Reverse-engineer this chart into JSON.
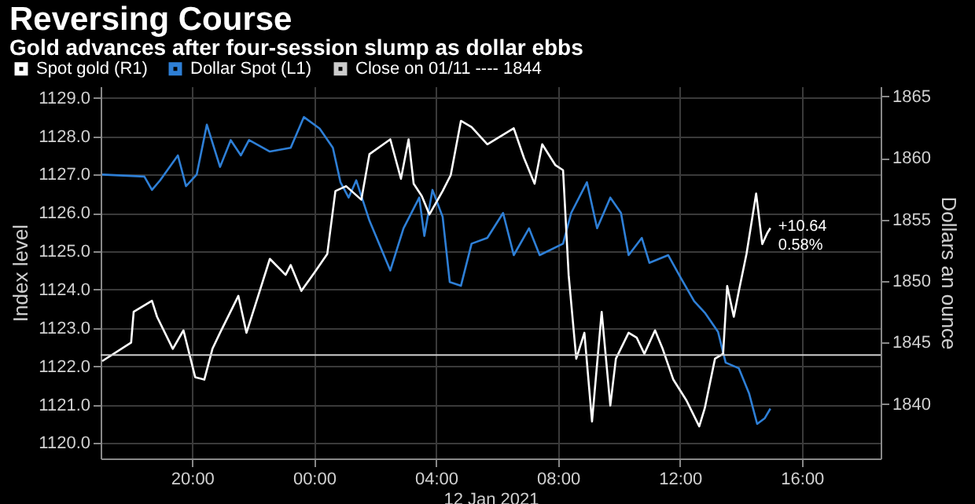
{
  "chart_data": {
    "type": "line",
    "title": "Reversing Course",
    "subtitle": "Gold advances after four-session slump as dollar ebbs",
    "xlabel": "12 Jan 2021",
    "ylabel": "Index level",
    "y2label": "Dollars an ounce",
    "xlim": [
      "2021-01-11T17:00",
      "2021-01-12T18:35"
    ],
    "xticks": [
      {
        "value": "2021-01-11T20:00",
        "label": "20:00"
      },
      {
        "value": "2021-01-12T00:00",
        "label": "00:00"
      },
      {
        "value": "2021-01-12T04:00",
        "label": "04:00"
      },
      {
        "value": "2021-01-12T08:00",
        "label": "08:00"
      },
      {
        "value": "2021-01-12T12:00",
        "label": "12:00"
      },
      {
        "value": "2021-01-12T16:00",
        "label": "16:00"
      }
    ],
    "ylim": [
      1119.6,
      1129.3
    ],
    "yticks": [
      {
        "value": 1120,
        "label": "1120.0"
      },
      {
        "value": 1121,
        "label": "1121.0"
      },
      {
        "value": 1122,
        "label": "1122.0"
      },
      {
        "value": 1123,
        "label": "1123.0"
      },
      {
        "value": 1124,
        "label": "1124.0"
      },
      {
        "value": 1125,
        "label": "1125.0"
      },
      {
        "value": 1126,
        "label": "1126.0"
      },
      {
        "value": 1127,
        "label": "1127.0"
      },
      {
        "value": 1128,
        "label": "1128.0"
      },
      {
        "value": 1129,
        "label": "1129.0"
      }
    ],
    "y2lim": [
      1835.6,
      1865.8
    ],
    "y2ticks": [
      1840,
      1845,
      1850,
      1855,
      1860,
      1865
    ],
    "grid": true,
    "legend": "top left",
    "series": [
      {
        "name": "Spot gold (R1)",
        "color": "#ffffff",
        "axis": "y2",
        "x": [
          "2021-01-11T17:03",
          "2021-01-11T18:00",
          "2021-01-11T18:05",
          "2021-01-11T18:41",
          "2021-01-11T18:51",
          "2021-01-11T19:22",
          "2021-01-11T19:43",
          "2021-01-11T20:06",
          "2021-01-11T20:24",
          "2021-01-11T20:40",
          "2021-01-11T20:55",
          "2021-01-11T21:31",
          "2021-01-11T21:47",
          "2021-01-11T22:07",
          "2021-01-11T22:33",
          "2021-01-11T23:04",
          "2021-01-11T23:14",
          "2021-01-11T23:35",
          "2021-01-12T00:01",
          "2021-01-12T00:26",
          "2021-01-12T00:42",
          "2021-01-12T01:03",
          "2021-01-12T01:33",
          "2021-01-12T01:49",
          "2021-01-12T02:30",
          "2021-01-12T02:51",
          "2021-01-12T03:06",
          "2021-01-12T03:16",
          "2021-01-12T03:32",
          "2021-01-12T03:47",
          "2021-01-12T04:13",
          "2021-01-12T04:29",
          "2021-01-12T04:49",
          "2021-01-12T05:10",
          "2021-01-12T05:41",
          "2021-01-12T06:33",
          "2021-01-12T06:53",
          "2021-01-12T07:14",
          "2021-01-12T07:29",
          "2021-01-12T07:55",
          "2021-01-12T08:10",
          "2021-01-12T08:21",
          "2021-01-12T08:36",
          "2021-01-12T08:52",
          "2021-01-12T09:07",
          "2021-01-12T09:26",
          "2021-01-12T09:43",
          "2021-01-12T09:54",
          "2021-01-12T10:19",
          "2021-01-12T10:35",
          "2021-01-12T10:50",
          "2021-01-12T11:11",
          "2021-01-12T11:26",
          "2021-01-12T11:47",
          "2021-01-12T12:13",
          "2021-01-12T12:38",
          "2021-01-12T12:49",
          "2021-01-12T13:09",
          "2021-01-12T13:25",
          "2021-01-12T13:33",
          "2021-01-12T13:46",
          "2021-01-12T13:56",
          "2021-01-12T14:11",
          "2021-01-12T14:30",
          "2021-01-12T14:42",
          "2021-01-12T14:52",
          "2021-01-12T14:58"
        ],
        "values": [
          1843.5,
          1845.0,
          1847.5,
          1848.4,
          1847.1,
          1844.5,
          1846.0,
          1842.2,
          1842.0,
          1844.5,
          1845.8,
          1848.8,
          1845.8,
          1848.4,
          1851.8,
          1850.5,
          1851.3,
          1849.2,
          1850.7,
          1852.2,
          1857.3,
          1857.7,
          1856.6,
          1860.3,
          1861.5,
          1858.3,
          1861.5,
          1857.9,
          1856.9,
          1855.4,
          1857.3,
          1858.6,
          1863.0,
          1862.5,
          1861.1,
          1862.4,
          1860.0,
          1857.9,
          1861.1,
          1859.4,
          1859.0,
          1850.5,
          1843.7,
          1845.8,
          1838.6,
          1847.5,
          1839.9,
          1843.7,
          1845.8,
          1845.4,
          1844.1,
          1846.0,
          1844.5,
          1842.0,
          1840.3,
          1838.2,
          1839.7,
          1843.7,
          1844.1,
          1849.6,
          1847.1,
          1849.2,
          1852.2,
          1857.1,
          1853.0,
          1853.9,
          1854.3
        ]
      },
      {
        "name": "Dollar Spot (L1)",
        "color": "#2e7fd6",
        "axis": "y",
        "x": [
          "2021-01-11T17:03",
          "2021-01-11T18:26",
          "2021-01-11T18:41",
          "2021-01-11T18:57",
          "2021-01-11T19:32",
          "2021-01-11T19:48",
          "2021-01-11T20:09",
          "2021-01-11T20:29",
          "2021-01-11T20:55",
          "2021-01-11T21:16",
          "2021-01-11T21:36",
          "2021-01-11T21:52",
          "2021-01-11T22:33",
          "2021-01-11T23:14",
          "2021-01-11T23:40",
          "2021-01-12T00:11",
          "2021-01-12T00:37",
          "2021-01-12T00:52",
          "2021-01-12T01:08",
          "2021-01-12T01:23",
          "2021-01-12T01:49",
          "2021-01-12T02:30",
          "2021-01-12T02:56",
          "2021-01-12T03:27",
          "2021-01-12T03:37",
          "2021-01-12T03:53",
          "2021-01-12T04:13",
          "2021-01-12T04:27",
          "2021-01-12T04:49",
          "2021-01-12T05:10",
          "2021-01-12T05:41",
          "2021-01-12T06:12",
          "2021-01-12T06:33",
          "2021-01-12T07:03",
          "2021-01-12T07:24",
          "2021-01-12T08:10",
          "2021-01-12T08:26",
          "2021-01-12T08:57",
          "2021-01-12T09:17",
          "2021-01-12T09:43",
          "2021-01-12T10:04",
          "2021-01-12T10:19",
          "2021-01-12T10:45",
          "2021-01-12T11:00",
          "2021-01-12T11:37",
          "2021-01-12T12:02",
          "2021-01-12T12:28",
          "2021-01-12T12:49",
          "2021-01-12T13:15",
          "2021-01-12T13:30",
          "2021-01-12T13:56",
          "2021-01-12T14:16",
          "2021-01-12T14:32",
          "2021-01-12T14:47",
          "2021-01-12T14:58"
        ],
        "values": [
          1127.0,
          1126.95,
          1126.6,
          1126.85,
          1127.5,
          1126.7,
          1127.0,
          1128.3,
          1127.2,
          1127.9,
          1127.5,
          1127.9,
          1127.6,
          1127.7,
          1128.5,
          1128.2,
          1127.7,
          1126.8,
          1126.4,
          1126.85,
          1125.8,
          1124.5,
          1125.6,
          1126.4,
          1125.4,
          1126.6,
          1125.9,
          1124.2,
          1124.1,
          1125.2,
          1125.35,
          1126.0,
          1124.9,
          1125.6,
          1124.9,
          1125.2,
          1126.0,
          1126.8,
          1125.6,
          1126.4,
          1126.0,
          1124.9,
          1125.35,
          1124.7,
          1124.9,
          1124.3,
          1123.7,
          1123.4,
          1122.9,
          1122.1,
          1121.95,
          1121.3,
          1120.5,
          1120.65,
          1120.9
        ]
      }
    ],
    "ref_lines": [
      {
        "axis": "y2",
        "value": 1844,
        "label": "Close on 01/11 ---- 1844",
        "color": "#cccccc"
      }
    ],
    "annotations": [
      "+10.64",
      "0.58%"
    ]
  }
}
